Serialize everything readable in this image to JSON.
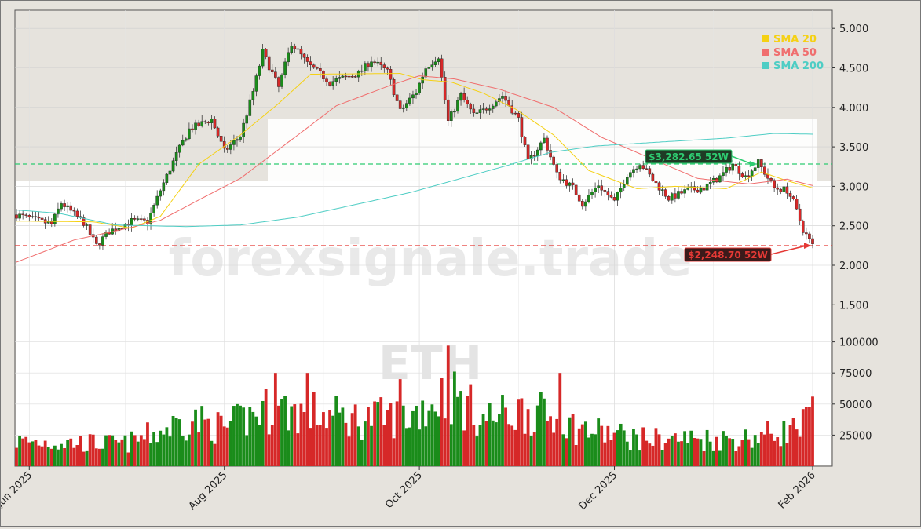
{
  "chart_data": {
    "type": "candlestick",
    "title": "",
    "symbol": "ETH",
    "watermark": "forexsignale.trade",
    "price_axis": {
      "ticks": [
        {
          "value": 1500,
          "label": "1.500"
        },
        {
          "value": 2000,
          "label": "2.000"
        },
        {
          "value": 2500,
          "label": "2.500"
        },
        {
          "value": 3000,
          "label": "3.000"
        },
        {
          "value": 3500,
          "label": "3.500"
        },
        {
          "value": 4000,
          "label": "4.000"
        },
        {
          "value": 4500,
          "label": "4.500"
        },
        {
          "value": 5000,
          "label": "5.000"
        }
      ]
    },
    "volume_axis": {
      "ticks": [
        {
          "value": 25000,
          "label": "25000"
        },
        {
          "value": 50000,
          "label": "50000"
        },
        {
          "value": 75000,
          "label": "75000"
        },
        {
          "value": 100000,
          "label": "100000"
        }
      ]
    },
    "x_ticks": [
      {
        "date": "2025-06-01",
        "label": "Jun 2025"
      },
      {
        "date": "2025-08-01",
        "label": "Aug 2025"
      },
      {
        "date": "2025-10-01",
        "label": "Oct 2025"
      },
      {
        "date": "2025-12-01",
        "label": "Dec 2025"
      },
      {
        "date": "2026-02-01",
        "label": "Feb 2026"
      }
    ],
    "date_range": [
      "2025-05-28",
      "2026-02-01"
    ],
    "anchors": [
      [
        "2025-05-28",
        2640
      ],
      [
        "2025-06-03",
        2570
      ],
      [
        "2025-06-08",
        2520
      ],
      [
        "2025-06-11",
        2790
      ],
      [
        "2025-06-18",
        2540
      ],
      [
        "2025-06-22",
        2250
      ],
      [
        "2025-06-26",
        2430
      ],
      [
        "2025-07-03",
        2560
      ],
      [
        "2025-07-08",
        2550
      ],
      [
        "2025-07-12",
        2950
      ],
      [
        "2025-07-17",
        3400
      ],
      [
        "2025-07-21",
        3720
      ],
      [
        "2025-07-28",
        3850
      ],
      [
        "2025-08-01",
        3440
      ],
      [
        "2025-08-06",
        3640
      ],
      [
        "2025-08-10",
        4200
      ],
      [
        "2025-08-13",
        4700
      ],
      [
        "2025-08-18",
        4250
      ],
      [
        "2025-08-22",
        4820
      ],
      [
        "2025-08-27",
        4550
      ],
      [
        "2025-09-03",
        4320
      ],
      [
        "2025-09-12",
        4430
      ],
      [
        "2025-09-16",
        4600
      ],
      [
        "2025-09-21",
        4450
      ],
      [
        "2025-09-25",
        3950
      ],
      [
        "2025-09-30",
        4200
      ],
      [
        "2025-10-03",
        4500
      ],
      [
        "2025-10-07",
        4650
      ],
      [
        "2025-10-10",
        3820
      ],
      [
        "2025-10-14",
        4150
      ],
      [
        "2025-10-18",
        3900
      ],
      [
        "2025-10-21",
        3960
      ],
      [
        "2025-10-27",
        4150
      ],
      [
        "2025-11-01",
        3850
      ],
      [
        "2025-11-04",
        3300
      ],
      [
        "2025-11-09",
        3600
      ],
      [
        "2025-11-13",
        3150
      ],
      [
        "2025-11-18",
        2980
      ],
      [
        "2025-11-21",
        2780
      ],
      [
        "2025-11-26",
        3020
      ],
      [
        "2025-12-01",
        2800
      ],
      [
        "2025-12-05",
        3150
      ],
      [
        "2025-12-09",
        3300
      ],
      [
        "2025-12-13",
        3080
      ],
      [
        "2025-12-18",
        2850
      ],
      [
        "2025-12-24",
        2950
      ],
      [
        "2025-12-29",
        2980
      ],
      [
        "2026-01-03",
        3120
      ],
      [
        "2026-01-07",
        3280
      ],
      [
        "2026-01-11",
        3120
      ],
      [
        "2026-01-15",
        3300
      ],
      [
        "2026-01-20",
        2980
      ],
      [
        "2026-01-24",
        2950
      ],
      [
        "2026-01-26",
        2800
      ],
      [
        "2026-01-29",
        2450
      ],
      [
        "2026-02-01",
        2250
      ]
    ],
    "volume_anchors": [
      [
        "2025-05-28",
        20000
      ],
      [
        "2025-07-01",
        18000
      ],
      [
        "2025-07-12",
        28000
      ],
      [
        "2025-07-21",
        38000
      ],
      [
        "2025-08-01",
        30000
      ],
      [
        "2025-08-13",
        45000
      ],
      [
        "2025-08-22",
        45000
      ],
      [
        "2025-09-10",
        38000
      ],
      [
        "2025-09-28",
        40000
      ],
      [
        "2025-10-10",
        60000
      ],
      [
        "2025-10-21",
        38000
      ],
      [
        "2025-11-04",
        45000
      ],
      [
        "2025-11-20",
        30000
      ],
      [
        "2025-12-10",
        22000
      ],
      [
        "2026-01-10",
        22000
      ],
      [
        "2026-01-28",
        30000
      ],
      [
        "2026-02-01",
        42000
      ]
    ],
    "volume_spikes": [
      [
        "2025-08-17",
        75000
      ],
      [
        "2025-08-27",
        75000
      ],
      [
        "2025-10-10",
        97000
      ],
      [
        "2025-09-25",
        70000
      ],
      [
        "2025-11-14",
        75000
      ],
      [
        "2026-02-01",
        56000
      ]
    ],
    "sma_anchors": {
      "sma20": [
        [
          "2025-05-28",
          2560
        ],
        [
          "2025-06-21",
          2550
        ],
        [
          "2025-07-03",
          2470
        ],
        [
          "2025-07-12",
          2620
        ],
        [
          "2025-07-24",
          3280
        ],
        [
          "2025-08-06",
          3650
        ],
        [
          "2025-08-18",
          4050
        ],
        [
          "2025-08-28",
          4420
        ],
        [
          "2025-09-25",
          4430
        ],
        [
          "2025-10-02",
          4350
        ],
        [
          "2025-10-11",
          4320
        ],
        [
          "2025-10-21",
          4180
        ],
        [
          "2025-10-31",
          3980
        ],
        [
          "2025-11-12",
          3650
        ],
        [
          "2025-11-23",
          3200
        ],
        [
          "2025-12-08",
          2970
        ],
        [
          "2025-12-20",
          3000
        ],
        [
          "2026-01-05",
          2970
        ],
        [
          "2026-01-16",
          3180
        ],
        [
          "2026-01-24",
          3070
        ],
        [
          "2026-02-01",
          2980
        ]
      ],
      "sma50": [
        [
          "2025-05-28",
          2040
        ],
        [
          "2025-06-15",
          2320
        ],
        [
          "2025-07-03",
          2480
        ],
        [
          "2025-07-12",
          2570
        ],
        [
          "2025-07-26",
          2870
        ],
        [
          "2025-08-06",
          3100
        ],
        [
          "2025-08-24",
          3650
        ],
        [
          "2025-09-05",
          4020
        ],
        [
          "2025-09-22",
          4280
        ],
        [
          "2025-10-01",
          4400
        ],
        [
          "2025-10-12",
          4360
        ],
        [
          "2025-10-26",
          4230
        ],
        [
          "2025-11-12",
          4000
        ],
        [
          "2025-11-27",
          3620
        ],
        [
          "2025-12-12",
          3360
        ],
        [
          "2025-12-27",
          3100
        ],
        [
          "2026-01-12",
          3030
        ],
        [
          "2026-01-24",
          3090
        ],
        [
          "2026-02-01",
          3010
        ]
      ],
      "sma200": [
        [
          "2025-05-28",
          2700
        ],
        [
          "2025-06-10",
          2660
        ],
        [
          "2025-06-28",
          2510
        ],
        [
          "2025-07-20",
          2490
        ],
        [
          "2025-08-06",
          2510
        ],
        [
          "2025-08-24",
          2610
        ],
        [
          "2025-09-10",
          2760
        ],
        [
          "2025-09-28",
          2920
        ],
        [
          "2025-10-14",
          3100
        ],
        [
          "2025-10-29",
          3270
        ],
        [
          "2025-11-11",
          3430
        ],
        [
          "2025-11-25",
          3510
        ],
        [
          "2025-12-15",
          3560
        ],
        [
          "2026-01-05",
          3610
        ],
        [
          "2026-01-20",
          3670
        ],
        [
          "2026-02-01",
          3660
        ]
      ]
    },
    "series": [
      {
        "key": "sma20",
        "name": "SMA 20",
        "color": "#f5d114"
      },
      {
        "key": "sma50",
        "name": "SMA 50",
        "color": "#f06e6e"
      },
      {
        "key": "sma200",
        "name": "SMA 200",
        "color": "#4ecdc4"
      }
    ],
    "levels": {
      "high": {
        "value": 3282.65,
        "label": "$3,282.65 52W",
        "color": "#2ecc71",
        "date": "2026-01-15"
      },
      "low": {
        "value": 2248.7,
        "label": "$2,248.70 52W",
        "color": "#e53935",
        "date": "2026-02-01"
      }
    },
    "colors": {
      "up": "#1a8c1a",
      "down": "#d62828",
      "panel_bg": "#e6e3dd",
      "plot_bg": "#ffffff"
    },
    "grid": true,
    "legend_position": "top-right"
  }
}
